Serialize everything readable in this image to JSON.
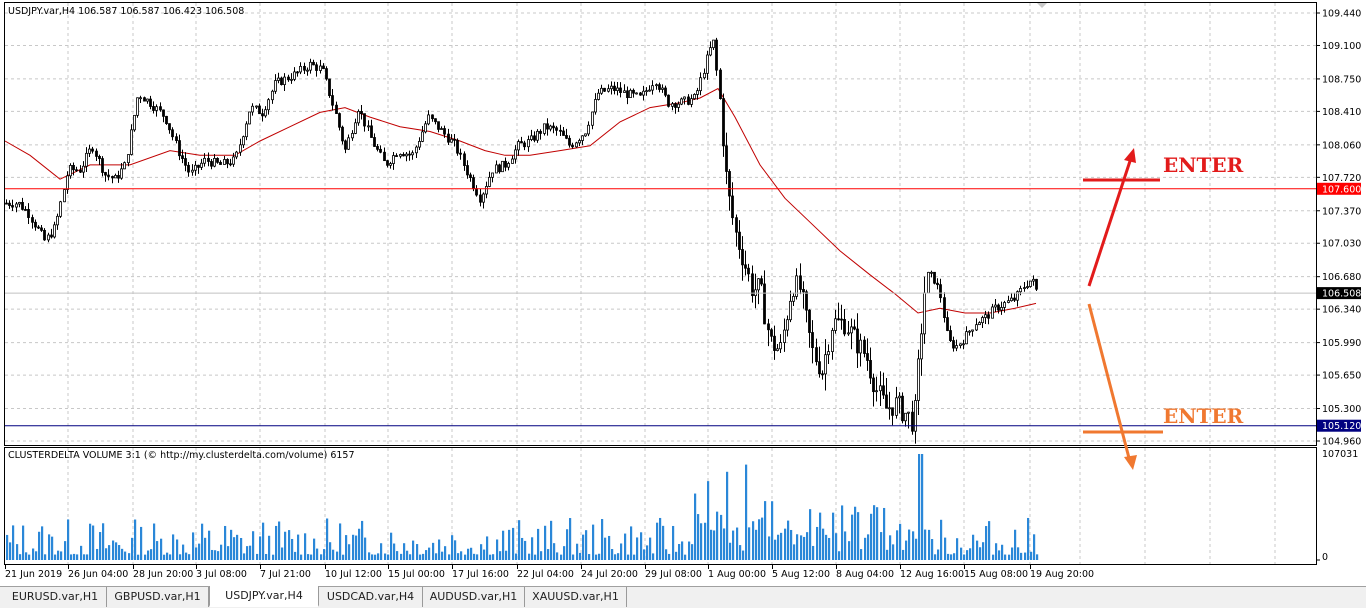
{
  "chart": {
    "header": "USDJPY.var,H4  106.587 106.587 106.423 106.508",
    "price_labels": [
      "109.440",
      "109.100",
      "108.750",
      "108.410",
      "108.060",
      "107.720",
      "107.370",
      "107.030",
      "106.680",
      "106.340",
      "105.990",
      "105.650",
      "105.300",
      "104.960"
    ],
    "date_labels": [
      "21 Jun 2019",
      "26 Jun 04:00",
      "28 Jun 20:00",
      "3 Jul 08:00",
      "7 Jul 21:00",
      "10 Jul 12:00",
      "15 Jul 00:00",
      "17 Jul 16:00",
      "22 Jul 04:00",
      "24 Jul 20:00",
      "29 Jul 08:00",
      "1 Aug 00:00",
      "5 Aug 12:00",
      "8 Aug 04:00",
      "12 Aug 16:00",
      "15 Aug 08:00",
      "19 Aug 20:00"
    ],
    "y_range": [
      104.96,
      109.44
    ],
    "hline_red": {
      "label": "107.600",
      "value": 107.6,
      "color": "#ff0000"
    },
    "hline_blue": {
      "label": "105.120",
      "value": 105.12,
      "color": "#000080"
    },
    "current_price": {
      "label": "106.508",
      "value": 106.508
    },
    "ma_color": "#c00000",
    "candle_color": "#000000"
  },
  "annotations": {
    "enter_up": {
      "text": "ENTER",
      "color": "#e21b1b"
    },
    "enter_down": {
      "text": "ENTER",
      "color": "#f07830"
    }
  },
  "volume": {
    "header": "CLUSTERDELTA VOLUME 3:1 (© http://my.clusterdelta.com/volume) 6157",
    "max_label": "107031",
    "zero_label": "0",
    "bar_color": "#2a87d8"
  },
  "chart_data": {
    "type": "candlestick",
    "symbol": "USDJPY.var",
    "timeframe": "H4",
    "x": [
      "21 Jun 2019",
      "26 Jun 04:00",
      "28 Jun 20:00",
      "3 Jul 08:00",
      "7 Jul 21:00",
      "10 Jul 12:00",
      "15 Jul 00:00",
      "17 Jul 16:00",
      "22 Jul 04:00",
      "24 Jul 20:00",
      "29 Jul 08:00",
      "1 Aug 00:00",
      "5 Aug 12:00",
      "8 Aug 04:00",
      "12 Aug 16:00",
      "15 Aug 08:00",
      "19 Aug 20:00"
    ],
    "close_approx": [
      107.4,
      107.7,
      107.9,
      107.8,
      108.6,
      108.4,
      108.0,
      107.6,
      108.0,
      108.2,
      108.7,
      108.8,
      106.2,
      105.9,
      105.4,
      106.1,
      106.5
    ],
    "ma_approx": [
      108.0,
      107.9,
      107.9,
      107.9,
      108.2,
      108.3,
      108.2,
      108.1,
      108.0,
      108.1,
      108.4,
      108.5,
      107.4,
      106.7,
      106.3,
      106.3,
      106.35
    ],
    "ylim": [
      104.96,
      109.44
    ],
    "horizontal_lines": [
      107.6,
      105.12
    ]
  },
  "tabs": [
    "EURUSD.var,H1",
    "GBPUSD.var,H1",
    "USDJPY.var,H4",
    "USDCAD.var,H4",
    "AUDUSD.var,H1",
    "XAUUSD.var,H1"
  ],
  "active_tab": 2
}
